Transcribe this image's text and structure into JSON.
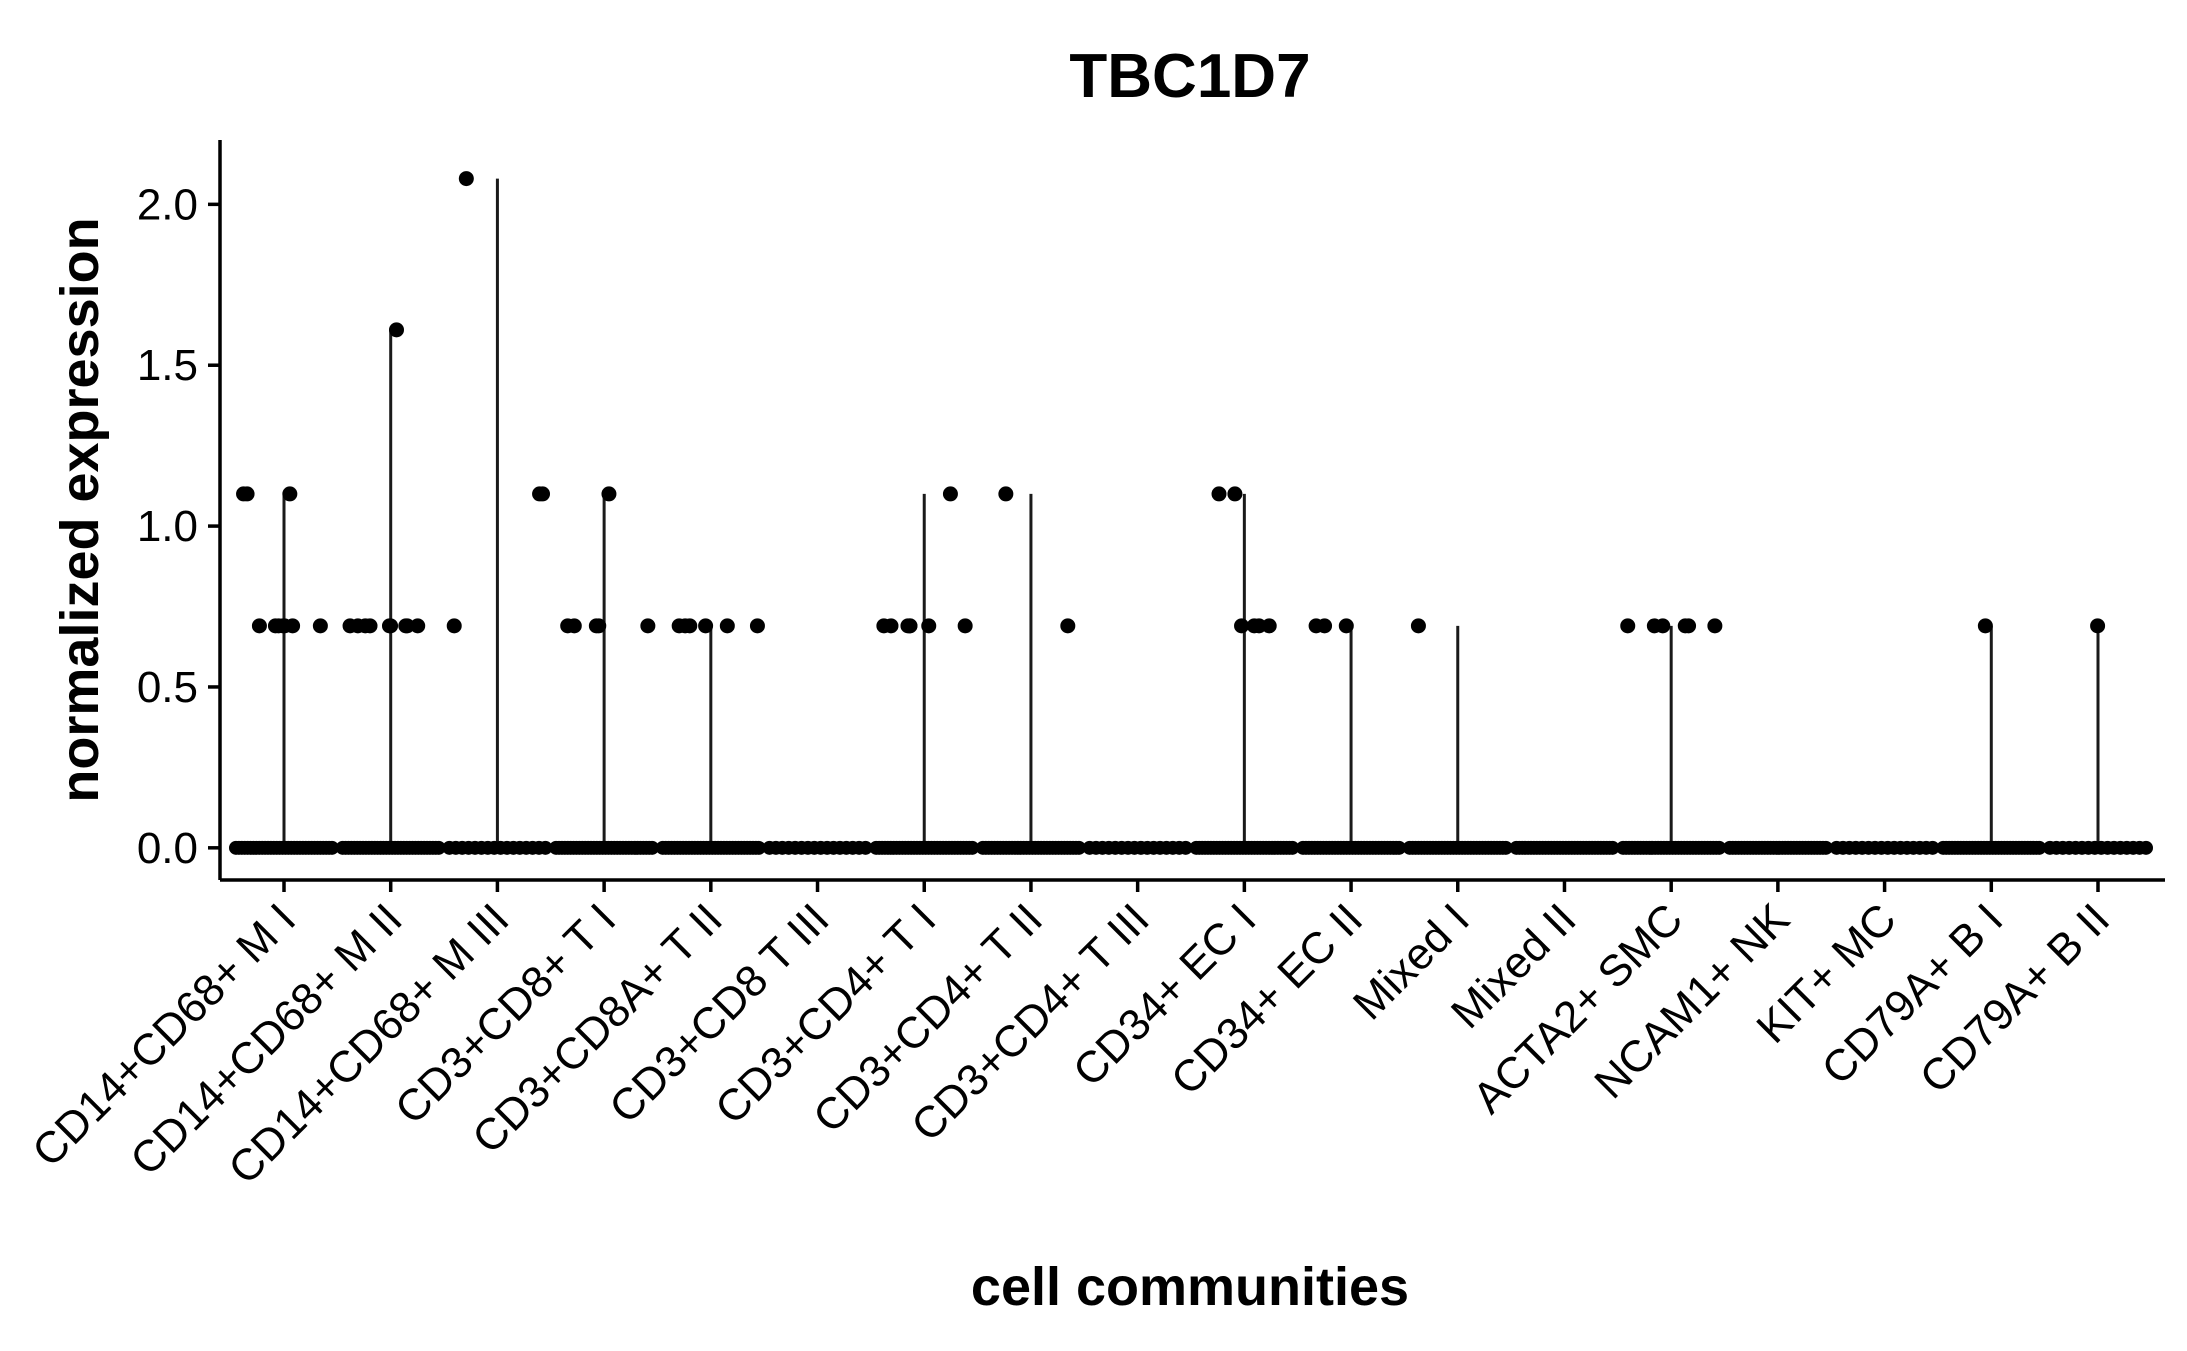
{
  "chart_data": {
    "type": "scatter",
    "title": "TBC1D7",
    "xlabel": "cell communities",
    "ylabel": "normalized expression",
    "ylim": [
      -0.1,
      2.2
    ],
    "yticks": [
      0.0,
      0.5,
      1.0,
      1.5,
      2.0
    ],
    "ytick_labels": [
      "0.0",
      "0.5",
      "1.0",
      "1.5",
      "2.0"
    ],
    "grid": false,
    "legend": "none",
    "point_color": "#000000",
    "categories": [
      "CD14+CD68+ M I",
      "CD14+CD68+ M II",
      "CD14+CD68+ M III",
      "CD3+CD8+ T I",
      "CD3+CD8A+ T II",
      "CD3+CD8 T III",
      "CD3+CD4+ T I",
      "CD3+CD4+ T II",
      "CD3+CD4+ T III",
      "CD34+ EC I",
      "CD34+ EC II",
      "Mixed I",
      "Mixed II",
      "ACTA2+ SMC",
      "NCAM1+ NK",
      "KIT+ MC",
      "CD79A+ B I",
      "CD79A+ B II"
    ],
    "max_values": [
      1.1,
      1.61,
      2.08,
      1.1,
      0.69,
      0.0,
      1.1,
      1.1,
      0.0,
      1.1,
      0.69,
      0.69,
      0.0,
      0.69,
      0.0,
      0.0,
      0.69,
      0.69
    ],
    "nonzero_points": [
      {
        "values": [
          0.69,
          1.1,
          1.1,
          0.69,
          0.69,
          0.69,
          1.1,
          0.69,
          0.69,
          0.69
        ]
      },
      {
        "values": [
          0.69,
          0.69,
          0.69,
          0.69,
          0.69,
          0.69,
          0.69,
          0.69,
          1.61,
          0.69
        ]
      },
      {
        "values": [
          2.08,
          0.69,
          1.1,
          1.1
        ]
      },
      {
        "values": [
          0.69,
          0.69,
          0.69,
          0.69,
          0.69,
          1.1
        ]
      },
      {
        "values": [
          0.69,
          0.69,
          0.69,
          0.69,
          0.69,
          0.69
        ]
      },
      {
        "values": []
      },
      {
        "values": [
          0.69,
          0.69,
          0.69,
          1.1,
          0.69,
          0.69,
          0.69,
          0.69
        ]
      },
      {
        "values": [
          1.1,
          0.69
        ]
      },
      {
        "values": []
      },
      {
        "values": [
          0.69,
          1.1,
          0.69,
          1.1,
          0.69,
          0.69
        ]
      },
      {
        "values": [
          0.69,
          0.69,
          0.69
        ]
      },
      {
        "values": [
          0.69
        ]
      },
      {
        "values": []
      },
      {
        "values": [
          0.69,
          0.69,
          0.69,
          0.69,
          0.69,
          0.69
        ]
      },
      {
        "values": []
      },
      {
        "values": []
      },
      {
        "values": [
          0.69
        ]
      },
      {
        "values": [
          0.69
        ]
      }
    ]
  }
}
